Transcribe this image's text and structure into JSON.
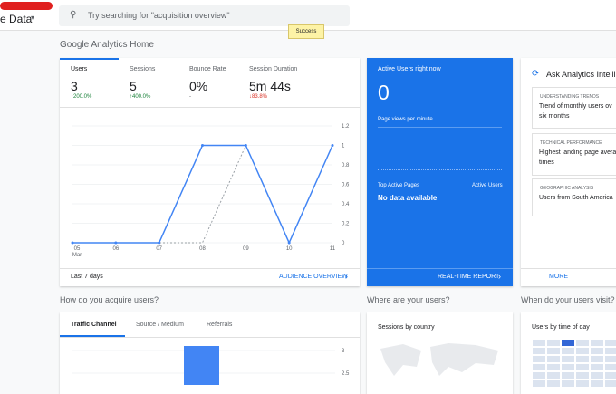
{
  "header": {
    "property": "e Data",
    "search_placeholder": "Try searching for \"acquisition overview\"",
    "toast": "Success"
  },
  "page_title": "Google Analytics Home",
  "overview": {
    "metrics": [
      {
        "label": "Users",
        "value": "3",
        "change": "↑200.0%"
      },
      {
        "label": "Sessions",
        "value": "5",
        "change": "↑400.0%"
      },
      {
        "label": "Bounce Rate",
        "value": "0%",
        "change": "-"
      },
      {
        "label": "Session Duration",
        "value": "5m 44s",
        "change": "↓83.8%"
      }
    ],
    "chart_data": {
      "type": "line",
      "categories": [
        "05",
        "06",
        "07",
        "08",
        "09",
        "10",
        "11"
      ],
      "month": "Mar",
      "series": [
        {
          "color": "#4285f4",
          "values": [
            0,
            0,
            0,
            1,
            1,
            0,
            1
          ]
        },
        {
          "color": "#9aa0a6",
          "style": "dotted",
          "values": [
            0,
            0,
            0,
            0,
            1,
            null,
            null
          ]
        }
      ],
      "ylim": [
        0,
        1.2
      ],
      "yticks": [
        0,
        0.2,
        0.4,
        0.6,
        0.8,
        1,
        1.2
      ],
      "grid": true
    },
    "date_range": "Last 7 days",
    "link": "AUDIENCE OVERVIEW"
  },
  "realtime": {
    "title": "Active Users right now",
    "value": "0",
    "subtitle": "Page views per minute",
    "table_header": "Top Active Pages",
    "table_column": "Active Users",
    "empty": "No data available",
    "link": "REAL-TIME REPORT"
  },
  "intelligence": {
    "title": "Ask Analytics Intelli",
    "cards": [
      {
        "tag": "UNDERSTANDING TRENDS",
        "lines": [
          "Trend of monthly users ov",
          "six months"
        ]
      },
      {
        "tag": "TECHNICAL PERFORMANCE",
        "lines": [
          "Highest landing page avera",
          "times"
        ]
      },
      {
        "tag": "GEOGRAPHIC ANALYSIS",
        "lines": [
          "Users from South America"
        ]
      }
    ],
    "link": "MORE"
  },
  "acquisition": {
    "heading": "How do you acquire users?",
    "tabs": [
      "Traffic Channel",
      "Source / Medium",
      "Referrals"
    ],
    "chart_data": {
      "type": "bar",
      "values": [
        3.1
      ],
      "color": "#4285f4",
      "ylim": [
        2.2,
        3.2
      ],
      "yticks": [
        2.5,
        3
      ]
    }
  },
  "geo": {
    "heading": "Where are your users?",
    "card_title": "Sessions by country"
  },
  "time": {
    "heading": "When do your users visit?",
    "card_title": "Users by time of day"
  }
}
